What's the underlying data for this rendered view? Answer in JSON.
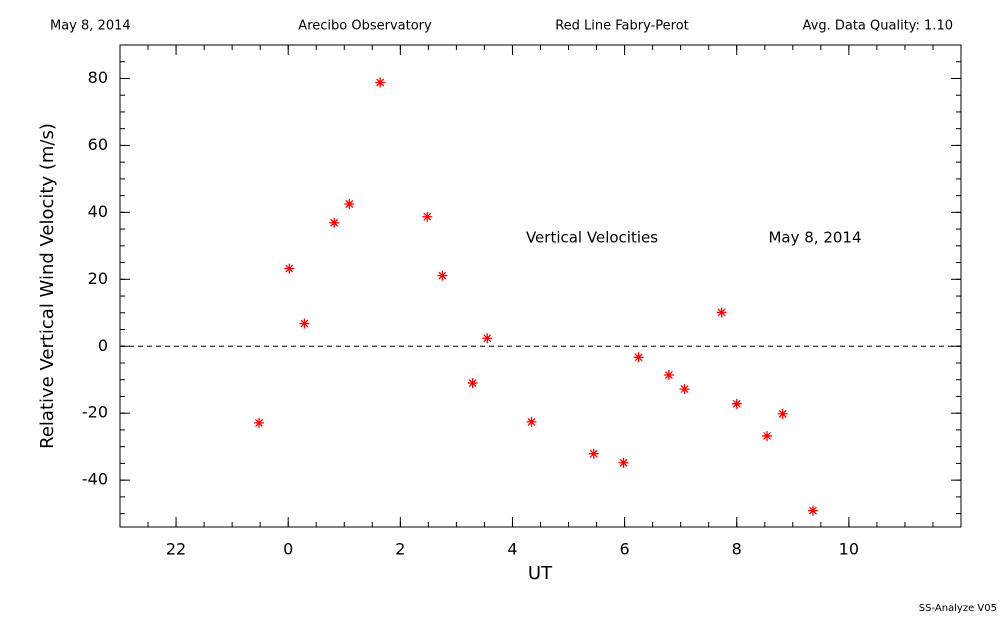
{
  "header": {
    "date": "May 8, 2014",
    "site": "Arecibo Observatory",
    "instrument": "Red Line Fabry-Perot",
    "quality": "Avg. Data Quality: 1.10"
  },
  "footer": "SS-Analyze V05",
  "chart_data": {
    "type": "scatter",
    "xlabel": "UT",
    "ylabel": "Relative Vertical Wind Velocity (m/s)",
    "annotations": [
      "Vertical Velocities",
      "May 8, 2014"
    ],
    "x": [
      -0.52,
      0.02,
      0.29,
      0.82,
      1.09,
      1.64,
      2.48,
      2.75,
      3.29,
      3.55,
      4.34,
      5.45,
      5.98,
      6.25,
      6.79,
      7.07,
      7.73,
      8.0,
      8.54,
      8.82,
      9.36
    ],
    "values": [
      -22.9,
      23.2,
      6.8,
      36.9,
      42.5,
      78.8,
      38.7,
      21.1,
      -11.0,
      2.4,
      -22.6,
      -32.1,
      -34.8,
      -3.3,
      -8.6,
      -12.8,
      10.1,
      -17.2,
      -26.8,
      -20.2,
      -49.1
    ],
    "color": "#ff0000",
    "marker": "asterisk",
    "reference_line": 0,
    "xlim": [
      -3,
      12
    ],
    "xticks": [
      {
        "value": -2,
        "label": "22"
      },
      0,
      2,
      4,
      6,
      8,
      10
    ],
    "ylim": [
      -54,
      90
    ],
    "yticks": [
      -40,
      -20,
      0,
      20,
      40,
      60,
      80
    ]
  }
}
